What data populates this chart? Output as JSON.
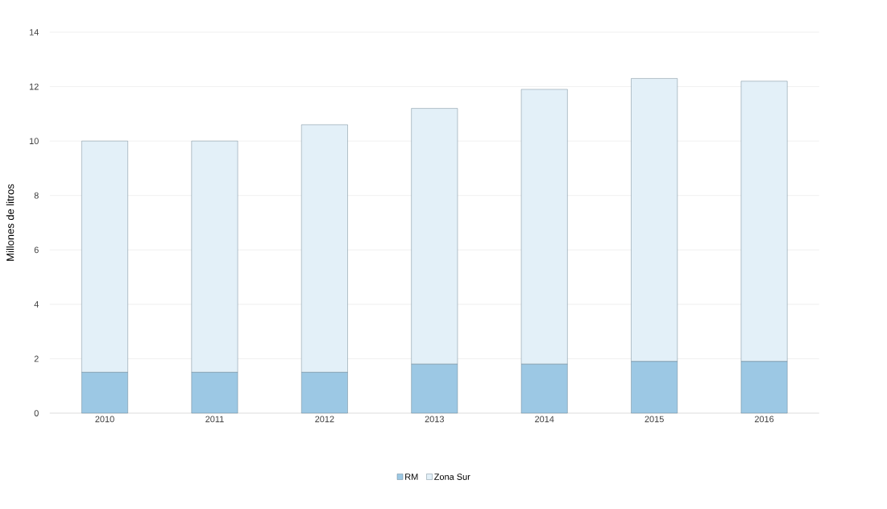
{
  "chart_data": {
    "type": "bar",
    "stacked": true,
    "ylabel": "Millones de litros",
    "categories": [
      "2010",
      "2011",
      "2012",
      "2013",
      "2014",
      "2015",
      "2016"
    ],
    "series": [
      {
        "name": "RM",
        "color": "#9cc8e4",
        "values": [
          1.5,
          1.5,
          1.5,
          1.8,
          1.8,
          1.9,
          1.9
        ]
      },
      {
        "name": "Zona Sur",
        "color": "#e3f0f8",
        "values": [
          8.5,
          8.5,
          9.1,
          9.4,
          10.1,
          10.4,
          10.3
        ]
      }
    ],
    "ylim": [
      0,
      14
    ],
    "yticks": [
      0,
      2,
      4,
      6,
      8,
      10,
      12,
      14
    ],
    "grid": "y",
    "legend": "bottom"
  }
}
